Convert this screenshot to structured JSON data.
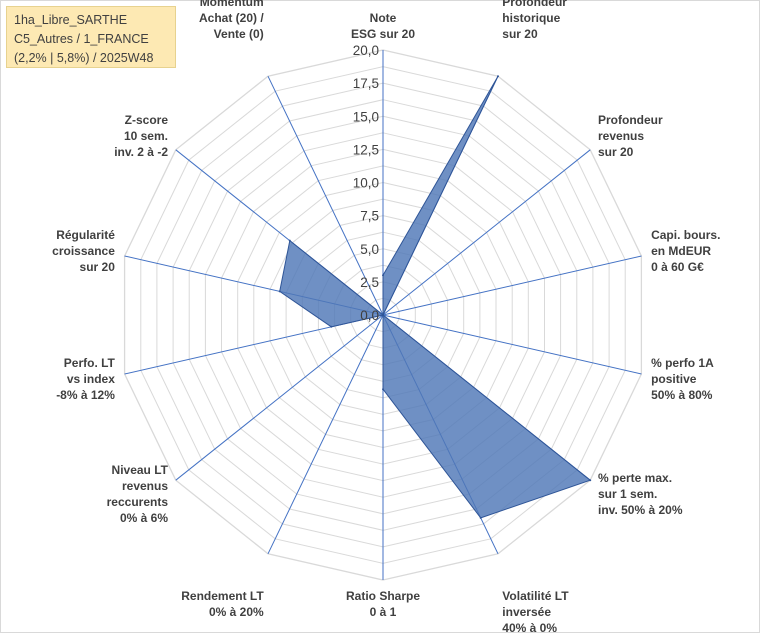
{
  "info": {
    "line1": "1ha_Libre_SARTHE",
    "line2": "C5_Autres / 1_FRANCE",
    "line3": "(2,2% | 5,8%) / 2025W48"
  },
  "colors": {
    "grid": "#d9d9d9",
    "spokes": "#4472c4",
    "fill": "#4f78b7",
    "stroke": "#2f5597",
    "info_bg": "#fde9b3"
  },
  "chart_data": {
    "type": "radar",
    "range": [
      0,
      20
    ],
    "step": 1.25,
    "grid": true,
    "tick_labels": [
      "0,0",
      "2,5",
      "5,0",
      "7,5",
      "10,0",
      "12,5",
      "15,0",
      "17,5",
      "20,0"
    ],
    "axes": [
      {
        "label": [
          "Note",
          "ESG sur 20"
        ],
        "value": 3.0
      },
      {
        "label": [
          "Profondeur",
          "historique",
          "sur 20"
        ],
        "value": 20.0
      },
      {
        "label": [
          "Profondeur",
          "revenus",
          "sur 20"
        ],
        "value": 0.0
      },
      {
        "label": [
          "Capi. bours.",
          "en MdEUR",
          "0 à 60 G€"
        ],
        "value": 0.0
      },
      {
        "label": [
          "% perfo 1A",
          "positive",
          "50% à 80%"
        ],
        "value": 0.0
      },
      {
        "label": [
          "% perte max.",
          "sur 1 sem.",
          "inv. 50% à 20%"
        ],
        "value": 20.0
      },
      {
        "label": [
          "Volatilité LT",
          "inversée",
          "40% à 0%"
        ],
        "value": 17.0
      },
      {
        "label": [
          "Ratio Sharpe",
          "0 à 1"
        ],
        "value": 5.6
      },
      {
        "label": [
          "Rendement LT",
          "0% à 20%"
        ],
        "value": 0.0
      },
      {
        "label": [
          "Niveau LT",
          "revenus",
          "reccurents",
          "0% à 6%"
        ],
        "value": 0.0
      },
      {
        "label": [
          "Perfo. LT",
          "vs index",
          "-8% à 12%"
        ],
        "value": 4.0
      },
      {
        "label": [
          "Régularité",
          "croissance",
          "sur 20"
        ],
        "value": 8.0
      },
      {
        "label": [
          "Z-score",
          "10 sem.",
          "inv. 2 à -2"
        ],
        "value": 9.0
      },
      {
        "label": [
          "Momentum",
          "Achat (20) /",
          "Vente (0)"
        ],
        "value": 0.0
      }
    ]
  }
}
